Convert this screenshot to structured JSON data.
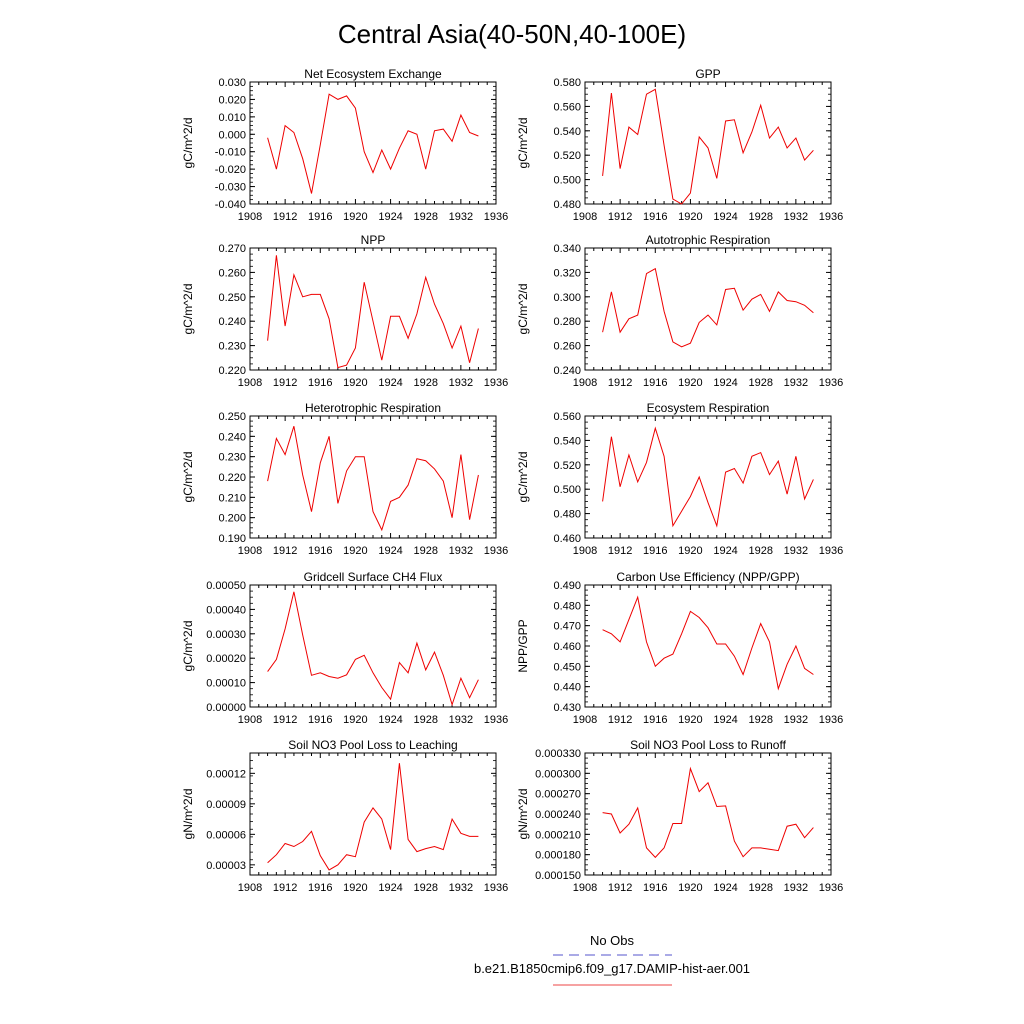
{
  "page_title": "Central Asia(40-50N,40-100E)",
  "legend": {
    "entries": [
      {
        "label": "No Obs",
        "color": "#5555cc",
        "style": "dashed"
      },
      {
        "label": "b.e21.B1850cmip6.f09_g17.DAMIP-hist-aer.001",
        "color": "#ee4444",
        "style": "solid"
      }
    ]
  },
  "chart_data": [
    {
      "type": "line",
      "title": "Net Ecosystem Exchange",
      "ylabel": "gC/m^2/d",
      "xlim": [
        1908,
        1936
      ],
      "xticks": [
        "1908",
        "1912",
        "1916",
        "1920",
        "1924",
        "1928",
        "1932",
        "1936"
      ],
      "ylim": [
        -0.04,
        0.03
      ],
      "yticks": [
        "-0.040",
        "-0.030",
        "-0.020",
        "-0.010",
        "0.000",
        "0.010",
        "0.020",
        "0.030"
      ],
      "ytick_values": [
        -0.04,
        -0.03,
        -0.02,
        -0.01,
        0,
        0.01,
        0.02,
        0.03
      ],
      "series": [
        {
          "color": "#ee0000",
          "x": [
            1910,
            1911,
            1912,
            1913,
            1914,
            1915,
            1916,
            1917,
            1918,
            1919,
            1920,
            1921,
            1922,
            1923,
            1924,
            1925,
            1926,
            1927,
            1928,
            1929,
            1930,
            1931,
            1932,
            1933,
            1934
          ],
          "y": [
            -0.002,
            -0.02,
            0.005,
            0.001,
            -0.014,
            -0.034,
            -0.006,
            0.023,
            0.02,
            0.022,
            0.015,
            -0.01,
            -0.022,
            -0.009,
            -0.02,
            -0.008,
            0.002,
            0.0,
            -0.02,
            0.002,
            0.003,
            -0.004,
            0.011,
            0.001,
            -0.001
          ]
        }
      ]
    },
    {
      "type": "line",
      "title": "GPP",
      "ylabel": "gC/m^2/d",
      "xlim": [
        1908,
        1936
      ],
      "xticks": [
        "1908",
        "1912",
        "1916",
        "1920",
        "1924",
        "1928",
        "1932",
        "1936"
      ],
      "ylim": [
        0.48,
        0.58
      ],
      "yticks": [
        "0.480",
        "0.500",
        "0.520",
        "0.540",
        "0.560",
        "0.580"
      ],
      "ytick_values": [
        0.48,
        0.5,
        0.52,
        0.54,
        0.56,
        0.58
      ],
      "series": [
        {
          "color": "#ee0000",
          "x": [
            1910,
            1911,
            1912,
            1913,
            1914,
            1915,
            1916,
            1917,
            1918,
            1919,
            1920,
            1921,
            1922,
            1923,
            1924,
            1925,
            1926,
            1927,
            1928,
            1929,
            1930,
            1931,
            1932,
            1933,
            1934
          ],
          "y": [
            0.503,
            0.571,
            0.509,
            0.543,
            0.537,
            0.57,
            0.574,
            0.528,
            0.484,
            0.48,
            0.489,
            0.535,
            0.526,
            0.501,
            0.548,
            0.549,
            0.522,
            0.539,
            0.561,
            0.534,
            0.543,
            0.526,
            0.534,
            0.516,
            0.524
          ]
        }
      ]
    },
    {
      "type": "line",
      "title": "NPP",
      "ylabel": "gC/m^2/d",
      "xlim": [
        1908,
        1936
      ],
      "xticks": [
        "1908",
        "1912",
        "1916",
        "1920",
        "1924",
        "1928",
        "1932",
        "1936"
      ],
      "ylim": [
        0.22,
        0.27
      ],
      "yticks": [
        "0.220",
        "0.230",
        "0.240",
        "0.250",
        "0.260",
        "0.270"
      ],
      "ytick_values": [
        0.22,
        0.23,
        0.24,
        0.25,
        0.26,
        0.27
      ],
      "series": [
        {
          "color": "#ee0000",
          "x": [
            1910,
            1911,
            1912,
            1913,
            1914,
            1915,
            1916,
            1917,
            1918,
            1919,
            1920,
            1921,
            1922,
            1923,
            1924,
            1925,
            1926,
            1927,
            1928,
            1929,
            1930,
            1931,
            1932,
            1933,
            1934
          ],
          "y": [
            0.232,
            0.267,
            0.238,
            0.259,
            0.25,
            0.251,
            0.251,
            0.241,
            0.221,
            0.222,
            0.229,
            0.256,
            0.24,
            0.224,
            0.242,
            0.242,
            0.233,
            0.243,
            0.258,
            0.247,
            0.239,
            0.229,
            0.238,
            0.223,
            0.237
          ]
        }
      ]
    },
    {
      "type": "line",
      "title": "Autotrophic Respiration",
      "ylabel": "gC/m^2/d",
      "xlim": [
        1908,
        1936
      ],
      "xticks": [
        "1908",
        "1912",
        "1916",
        "1920",
        "1924",
        "1928",
        "1932",
        "1936"
      ],
      "ylim": [
        0.24,
        0.34
      ],
      "yticks": [
        "0.240",
        "0.260",
        "0.280",
        "0.300",
        "0.320",
        "0.340"
      ],
      "ytick_values": [
        0.24,
        0.26,
        0.28,
        0.3,
        0.32,
        0.34
      ],
      "series": [
        {
          "color": "#ee0000",
          "x": [
            1910,
            1911,
            1912,
            1913,
            1914,
            1915,
            1916,
            1917,
            1918,
            1919,
            1920,
            1921,
            1922,
            1923,
            1924,
            1925,
            1926,
            1927,
            1928,
            1929,
            1930,
            1931,
            1932,
            1933,
            1934
          ],
          "y": [
            0.271,
            0.304,
            0.271,
            0.282,
            0.285,
            0.319,
            0.323,
            0.288,
            0.263,
            0.259,
            0.262,
            0.279,
            0.285,
            0.277,
            0.306,
            0.307,
            0.289,
            0.298,
            0.302,
            0.288,
            0.304,
            0.297,
            0.296,
            0.293,
            0.287
          ]
        }
      ]
    },
    {
      "type": "line",
      "title": "Heterotrophic Respiration",
      "ylabel": "gC/m^2/d",
      "xlim": [
        1908,
        1936
      ],
      "xticks": [
        "1908",
        "1912",
        "1916",
        "1920",
        "1924",
        "1928",
        "1932",
        "1936"
      ],
      "ylim": [
        0.19,
        0.25
      ],
      "yticks": [
        "0.190",
        "0.200",
        "0.210",
        "0.220",
        "0.230",
        "0.240",
        "0.250"
      ],
      "ytick_values": [
        0.19,
        0.2,
        0.21,
        0.22,
        0.23,
        0.24,
        0.25
      ],
      "series": [
        {
          "color": "#ee0000",
          "x": [
            1910,
            1911,
            1912,
            1913,
            1914,
            1915,
            1916,
            1917,
            1918,
            1919,
            1920,
            1921,
            1922,
            1923,
            1924,
            1925,
            1926,
            1927,
            1928,
            1929,
            1930,
            1931,
            1932,
            1933,
            1934
          ],
          "y": [
            0.218,
            0.239,
            0.231,
            0.245,
            0.221,
            0.203,
            0.227,
            0.24,
            0.207,
            0.223,
            0.23,
            0.23,
            0.203,
            0.194,
            0.208,
            0.21,
            0.216,
            0.229,
            0.228,
            0.224,
            0.218,
            0.2,
            0.231,
            0.199,
            0.221
          ]
        }
      ]
    },
    {
      "type": "line",
      "title": "Ecosystem Respiration",
      "ylabel": "gC/m^2/d",
      "xlim": [
        1908,
        1936
      ],
      "xticks": [
        "1908",
        "1912",
        "1916",
        "1920",
        "1924",
        "1928",
        "1932",
        "1936"
      ],
      "ylim": [
        0.46,
        0.56
      ],
      "yticks": [
        "0.460",
        "0.480",
        "0.500",
        "0.520",
        "0.540",
        "0.560"
      ],
      "ytick_values": [
        0.46,
        0.48,
        0.5,
        0.52,
        0.54,
        0.56
      ],
      "series": [
        {
          "color": "#ee0000",
          "x": [
            1910,
            1911,
            1912,
            1913,
            1914,
            1915,
            1916,
            1917,
            1918,
            1919,
            1920,
            1921,
            1922,
            1923,
            1924,
            1925,
            1926,
            1927,
            1928,
            1929,
            1930,
            1931,
            1932,
            1933,
            1934
          ],
          "y": [
            0.49,
            0.543,
            0.502,
            0.528,
            0.506,
            0.522,
            0.55,
            0.527,
            0.47,
            0.482,
            0.494,
            0.51,
            0.489,
            0.47,
            0.514,
            0.517,
            0.505,
            0.527,
            0.53,
            0.512,
            0.523,
            0.496,
            0.527,
            0.492,
            0.508
          ]
        }
      ]
    },
    {
      "type": "line",
      "title": "Gridcell Surface CH4 Flux",
      "ylabel": "gC/m^2/d",
      "xlim": [
        1908,
        1936
      ],
      "xticks": [
        "1908",
        "1912",
        "1916",
        "1920",
        "1924",
        "1928",
        "1932",
        "1936"
      ],
      "ylim": [
        0,
        0.0005
      ],
      "yticks": [
        "0.00000",
        "0.00010",
        "0.00020",
        "0.00030",
        "0.00040",
        "0.00050"
      ],
      "ytick_values": [
        0,
        0.0001,
        0.0002,
        0.0003,
        0.0004,
        0.0005
      ],
      "series": [
        {
          "color": "#ee0000",
          "x": [
            1910,
            1911,
            1912,
            1913,
            1914,
            1915,
            1916,
            1917,
            1918,
            1919,
            1920,
            1921,
            1922,
            1923,
            1924,
            1925,
            1926,
            1927,
            1928,
            1929,
            1930,
            1931,
            1932,
            1933,
            1934
          ],
          "y": [
            0.000145,
            0.000195,
            0.00032,
            0.000472,
            0.000295,
            0.00013,
            0.00014,
            0.000125,
            0.000118,
            0.000132,
            0.000195,
            0.000212,
            0.00014,
            8e-05,
            3.2e-05,
            0.000182,
            0.00014,
            0.000262,
            0.000152,
            0.000225,
            0.00013,
            1e-05,
            0.000118,
            3.8e-05,
            0.000112
          ]
        }
      ]
    },
    {
      "type": "line",
      "title": "Carbon Use Efficiency (NPP/GPP)",
      "ylabel": "NPP/GPP",
      "xlim": [
        1908,
        1936
      ],
      "xticks": [
        "1908",
        "1912",
        "1916",
        "1920",
        "1924",
        "1928",
        "1932",
        "1936"
      ],
      "ylim": [
        0.43,
        0.49
      ],
      "yticks": [
        "0.430",
        "0.440",
        "0.450",
        "0.460",
        "0.470",
        "0.480",
        "0.490"
      ],
      "ytick_values": [
        0.43,
        0.44,
        0.45,
        0.46,
        0.47,
        0.48,
        0.49
      ],
      "series": [
        {
          "color": "#ee0000",
          "x": [
            1910,
            1911,
            1912,
            1913,
            1914,
            1915,
            1916,
            1917,
            1918,
            1919,
            1920,
            1921,
            1922,
            1923,
            1924,
            1925,
            1926,
            1927,
            1928,
            1929,
            1930,
            1931,
            1932,
            1933,
            1934
          ],
          "y": [
            0.468,
            0.466,
            0.462,
            0.473,
            0.484,
            0.462,
            0.45,
            0.454,
            0.456,
            0.466,
            0.477,
            0.474,
            0.469,
            0.461,
            0.461,
            0.455,
            0.446,
            0.459,
            0.471,
            0.462,
            0.439,
            0.451,
            0.46,
            0.449,
            0.446
          ]
        }
      ]
    },
    {
      "type": "line",
      "title": "Soil NO3 Pool Loss to Leaching",
      "ylabel": "gN/m^2/d",
      "xlim": [
        1908,
        1936
      ],
      "xticks": [
        "1908",
        "1912",
        "1916",
        "1920",
        "1924",
        "1928",
        "1932",
        "1936"
      ],
      "ylim": [
        2e-05,
        0.00014
      ],
      "yticks": [
        "0.00003",
        "0.00006",
        "0.00009",
        "0.00012"
      ],
      "ytick_values": [
        3e-05,
        6e-05,
        9e-05,
        0.00012
      ],
      "series": [
        {
          "color": "#ee0000",
          "x": [
            1910,
            1911,
            1912,
            1913,
            1914,
            1915,
            1916,
            1917,
            1918,
            1919,
            1920,
            1921,
            1922,
            1923,
            1924,
            1925,
            1926,
            1927,
            1928,
            1929,
            1930,
            1931,
            1932,
            1933,
            1934
          ],
          "y": [
            3.2e-05,
            4e-05,
            5.1e-05,
            4.8e-05,
            5.3e-05,
            6.3e-05,
            3.9e-05,
            2.5e-05,
            3e-05,
            4e-05,
            3.8e-05,
            7.2e-05,
            8.6e-05,
            7.5e-05,
            4.5e-05,
            0.00013,
            5.5e-05,
            4.3e-05,
            4.6e-05,
            4.8e-05,
            4.5e-05,
            7.5e-05,
            6.1e-05,
            5.8e-05,
            5.8e-05
          ]
        }
      ]
    },
    {
      "type": "line",
      "title": "Soil NO3 Pool Loss to Runoff",
      "ylabel": "gN/m^2/d",
      "xlim": [
        1908,
        1936
      ],
      "xticks": [
        "1908",
        "1912",
        "1916",
        "1920",
        "1924",
        "1928",
        "1932",
        "1936"
      ],
      "ylim": [
        0.00015,
        0.00033
      ],
      "yticks": [
        "0.000150",
        "0.000180",
        "0.000210",
        "0.000240",
        "0.000270",
        "0.000300",
        "0.000330"
      ],
      "ytick_values": [
        0.00015,
        0.00018,
        0.00021,
        0.00024,
        0.00027,
        0.0003,
        0.00033
      ],
      "series": [
        {
          "color": "#ee0000",
          "x": [
            1910,
            1911,
            1912,
            1913,
            1914,
            1915,
            1916,
            1917,
            1918,
            1919,
            1920,
            1921,
            1922,
            1923,
            1924,
            1925,
            1926,
            1927,
            1928,
            1929,
            1930,
            1931,
            1932,
            1933,
            1934
          ],
          "y": [
            0.000242,
            0.00024,
            0.000212,
            0.000225,
            0.000249,
            0.00019,
            0.000176,
            0.00019,
            0.000226,
            0.000226,
            0.000307,
            0.000273,
            0.000286,
            0.000251,
            0.000252,
            0.0002,
            0.000177,
            0.00019,
            0.00019,
            0.000188,
            0.000186,
            0.000222,
            0.000225,
            0.000205,
            0.00022
          ]
        }
      ]
    }
  ]
}
